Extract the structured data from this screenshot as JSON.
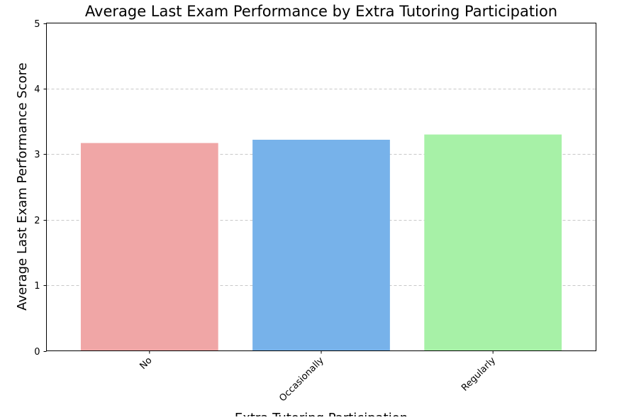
{
  "chart_data": {
    "type": "bar",
    "title": "Average Last Exam Performance by Extra Tutoring Participation",
    "xlabel": "Extra Tutoring Participation",
    "ylabel": "Average Last Exam Performance Score",
    "categories": [
      "No",
      "Occasionally",
      "Regularly"
    ],
    "values": [
      3.17,
      3.22,
      3.3
    ],
    "colors": [
      "#f0a6a6",
      "#77b2ea",
      "#a7f1a7"
    ],
    "ylim": [
      0,
      5
    ],
    "yticks": [
      "0",
      "1",
      "2",
      "3",
      "4",
      "5"
    ],
    "grid": "y-axis, dashed",
    "legend": "none"
  }
}
